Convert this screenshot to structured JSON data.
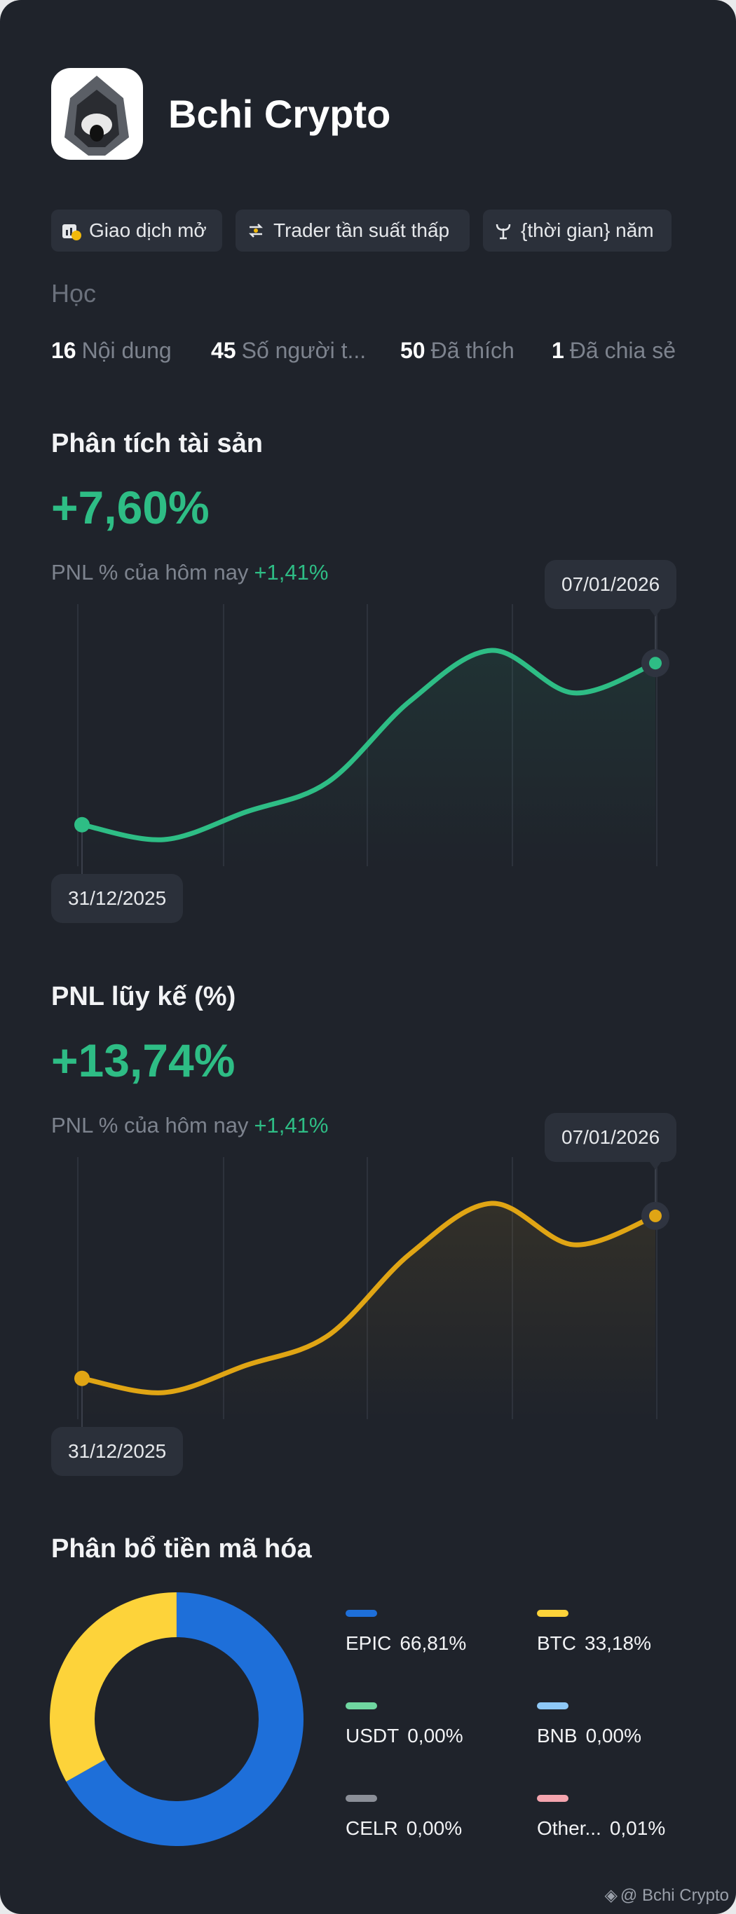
{
  "header": {
    "title": "Bchi Crypto"
  },
  "tags": [
    "Giao dịch mở",
    "Trader tần suất thấp",
    "{thời gian} năm"
  ],
  "section": "Học",
  "stats": [
    {
      "value": 16,
      "label": "Nội dung"
    },
    {
      "value": 45,
      "label": "Số người t..."
    },
    {
      "value": 50,
      "label": "Đã thích"
    },
    {
      "value": 1,
      "label": "Đã chia sẻ"
    }
  ],
  "chart_data": [
    {
      "type": "line",
      "title": "Phân tích tài sản",
      "headline": "+7,60%",
      "subtitle": "PNL % của hôm nay",
      "subtitle_value": "+1,41%",
      "x": [
        "31/12/2025",
        null,
        null,
        null,
        null,
        null,
        null,
        "07/01/2026"
      ],
      "series": [
        {
          "color": "#2ebd85",
          "values": [
            0,
            -0.7,
            0.6,
            2.0,
            5.8,
            8.2,
            6.2,
            7.6
          ]
        }
      ]
    },
    {
      "type": "line",
      "title": "PNL lũy kế (%)",
      "headline": "+13,74%",
      "subtitle": "PNL % của hôm nay",
      "subtitle_value": "+1,41%",
      "x": [
        "31/12/2025",
        null,
        null,
        null,
        null,
        null,
        null,
        "07/01/2026"
      ],
      "series": [
        {
          "color": "#e0a514",
          "values": [
            0,
            -1.2,
            1.1,
            3.6,
            10.5,
            14.8,
            11.3,
            13.74
          ]
        }
      ]
    },
    {
      "type": "donut",
      "title": "Phân bổ tiền mã hóa",
      "categories": [
        "EPIC",
        "BTC",
        "USDT",
        "BNB",
        "CELR",
        "Other..."
      ],
      "values": [
        66.81,
        33.18,
        0,
        0,
        0,
        0.01
      ],
      "value_labels": [
        "66,81%",
        "33,18%",
        "0,00%",
        "0,00%",
        "0,00%",
        "0,01%"
      ],
      "colors": [
        "#1e6fd9",
        "#fdd33a",
        "#6fd6a0",
        "#8ec8f6",
        "#8b8f98",
        "#f4a4ae"
      ]
    }
  ],
  "footer": "@ Bchi Crypto"
}
